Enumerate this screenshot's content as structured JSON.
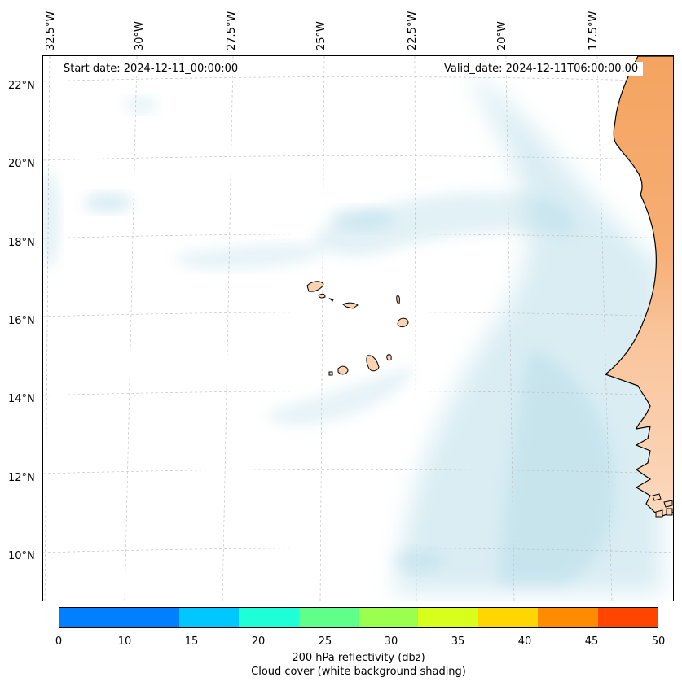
{
  "map": {
    "start_date": "Start date: 2024-12-11_00:00:00",
    "valid_date": "Valid_date: 2024-12-11T06:00:00.00",
    "lon_labels": [
      "32.5°W",
      "30°W",
      "27.5°W",
      "25°W",
      "22.5°W",
      "20°W",
      "17.5°W"
    ],
    "lat_labels": [
      "22°N",
      "20°N",
      "18°N",
      "16°N",
      "14°N",
      "12°N",
      "10°N"
    ],
    "colors": {
      "land_north": "#f4a460",
      "land_south": "#fbd3b0",
      "cloud": "#add8e6",
      "islands": "#fbd3b0",
      "coastline": "#000000",
      "gridlines": "#bbbbbb"
    }
  },
  "colorbar": {
    "ticks": [
      "0",
      "10",
      "15",
      "20",
      "25",
      "30",
      "35",
      "40",
      "45",
      "50"
    ],
    "colors": [
      "#007fff",
      "#00c8ff",
      "#1effd8",
      "#5fff8a",
      "#9bff50",
      "#d8ff1c",
      "#ffd700",
      "#ff8c00",
      "#ff4500"
    ],
    "label": "200 hPa reflectivity (dbz)",
    "sublabel": "Cloud cover (white background shading)"
  }
}
